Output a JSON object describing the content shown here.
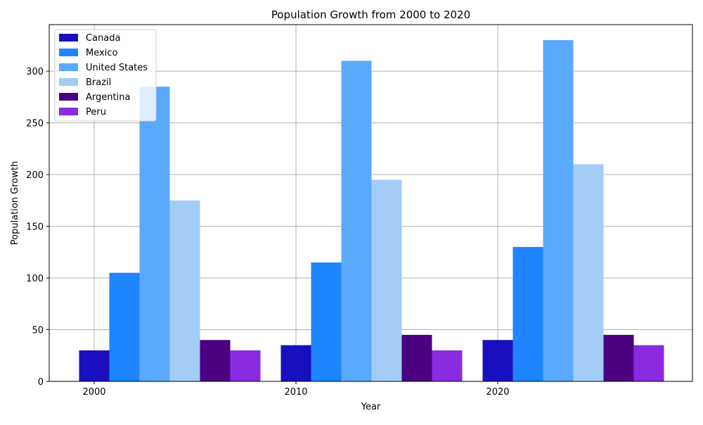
{
  "chart_data": {
    "type": "bar",
    "title": "Population Growth from 2000 to 2020",
    "xlabel": "Year",
    "ylabel": "Population Growth",
    "categories": [
      "2000",
      "2010",
      "2020"
    ],
    "ylim": [
      0,
      345
    ],
    "yticks": [
      0,
      50,
      100,
      150,
      200,
      250,
      300
    ],
    "grid": true,
    "legend_position": "upper-left",
    "series": [
      {
        "name": "Canada",
        "color": "#1a0fbf",
        "values": [
          30,
          35,
          40
        ]
      },
      {
        "name": "Mexico",
        "color": "#1e85ff",
        "values": [
          105,
          115,
          130
        ]
      },
      {
        "name": "United States",
        "color": "#5aa9ff",
        "values": [
          285,
          310,
          330
        ]
      },
      {
        "name": "Brazil",
        "color": "#a3cdf7",
        "values": [
          175,
          195,
          210
        ]
      },
      {
        "name": "Argentina",
        "color": "#4b0082",
        "values": [
          40,
          45,
          45
        ]
      },
      {
        "name": "Peru",
        "color": "#8a2be2",
        "values": [
          30,
          30,
          35
        ]
      }
    ]
  }
}
